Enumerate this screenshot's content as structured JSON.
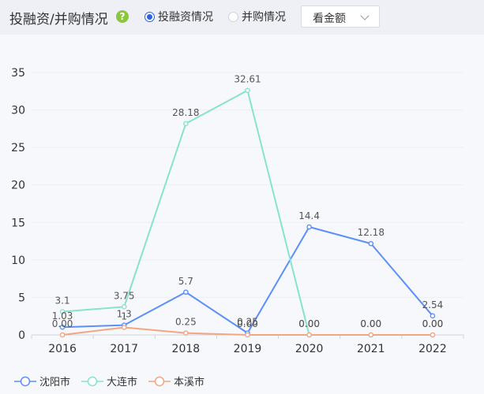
{
  "header": {
    "title": "投融资/并购情况",
    "help_icon": "question-icon",
    "radios": [
      {
        "label": "投融资情况",
        "checked": true
      },
      {
        "label": "并购情况",
        "checked": false
      }
    ],
    "select_value": "看金额"
  },
  "chart_data": {
    "type": "line",
    "title": "",
    "xlabel": "",
    "ylabel": "",
    "categories": [
      "2016",
      "2017",
      "2018",
      "2019",
      "2020",
      "2021",
      "2022"
    ],
    "ylim": [
      0,
      35
    ],
    "yticks": [
      0,
      5,
      10,
      15,
      20,
      25,
      30,
      35
    ],
    "grid": true,
    "legend_position": "bottom-left",
    "series": [
      {
        "name": "沈阳市",
        "color": "#5b8ff9",
        "values": [
          1.03,
          1.3,
          5.7,
          0.25,
          14.4,
          12.18,
          2.54
        ],
        "labels": [
          "1.03",
          "1.3",
          "5.7",
          "0.25",
          "14.4",
          "12.18",
          "2.54"
        ]
      },
      {
        "name": "大连市",
        "color": "#86e3ce",
        "values": [
          3.1,
          3.75,
          28.18,
          32.61,
          0,
          0,
          0
        ],
        "labels": [
          "3.1",
          "3.75",
          "28.18",
          "32.61",
          "0.00",
          "0.00",
          "0.00"
        ]
      },
      {
        "name": "本溪市",
        "color": "#f4a582",
        "values": [
          0,
          1,
          0.25,
          0,
          0,
          0,
          0
        ],
        "labels": [
          "0.00",
          "1",
          "0.25",
          "0.00",
          "0.00",
          "0.00",
          "0.00"
        ]
      }
    ]
  }
}
